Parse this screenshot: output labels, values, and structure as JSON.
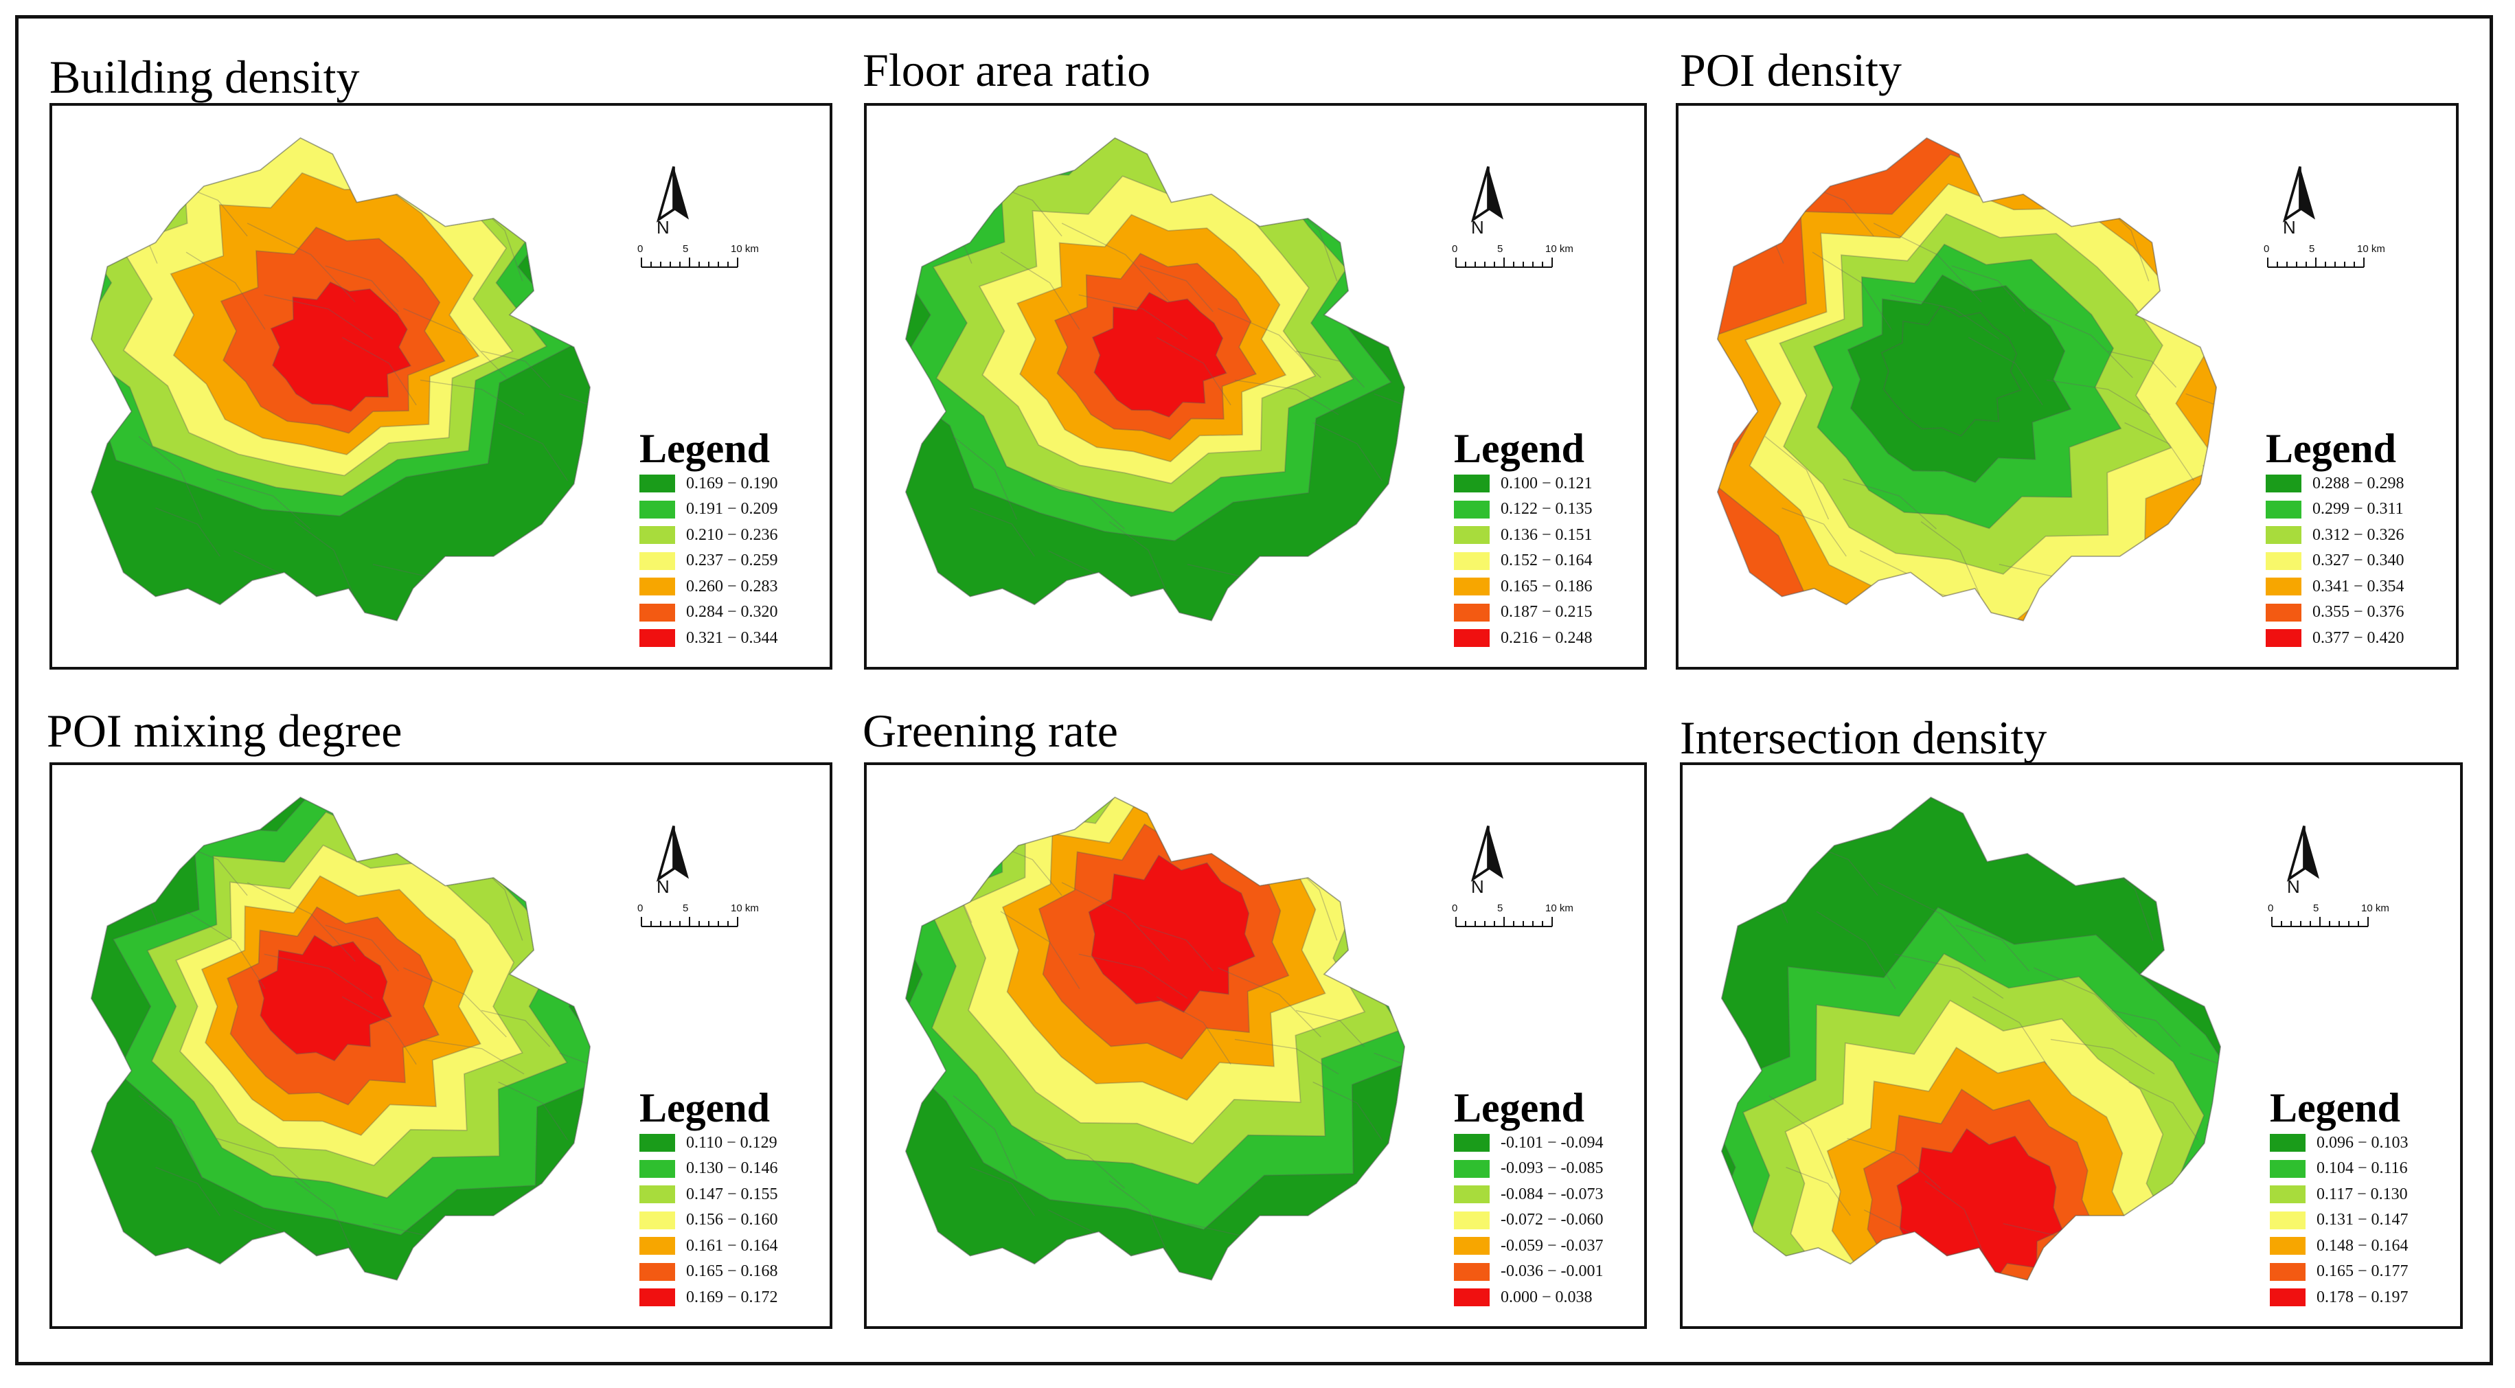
{
  "panels": [
    {
      "title": "Building density",
      "legend_title": "Legend",
      "north_label": "N",
      "scale": [
        "0",
        "5",
        "10 km"
      ],
      "classes": [
        {
          "label": "0.169 − 0.190",
          "color": "#1a9c1a"
        },
        {
          "label": "0.191 − 0.209",
          "color": "#2fbf2f"
        },
        {
          "label": "0.210 − 0.236",
          "color": "#a8dc3c"
        },
        {
          "label": "0.237 − 0.259",
          "color": "#f8f86a"
        },
        {
          "label": "0.260 − 0.283",
          "color": "#f7a600"
        },
        {
          "label": "0.284 − 0.320",
          "color": "#f35a12"
        },
        {
          "label": "0.321 − 0.344",
          "color": "#f01010"
        }
      ],
      "pattern": "center-hot"
    },
    {
      "title": "Floor area ratio",
      "legend_title": "Legend",
      "north_label": "N",
      "scale": [
        "0",
        "5",
        "10 km"
      ],
      "classes": [
        {
          "label": "0.100 − 0.121",
          "color": "#1a9c1a"
        },
        {
          "label": "0.122 − 0.135",
          "color": "#2fbf2f"
        },
        {
          "label": "0.136 − 0.151",
          "color": "#a8dc3c"
        },
        {
          "label": "0.152 − 0.164",
          "color": "#f8f86a"
        },
        {
          "label": "0.165 − 0.186",
          "color": "#f7a600"
        },
        {
          "label": "0.187 − 0.215",
          "color": "#f35a12"
        },
        {
          "label": "0.216 − 0.248",
          "color": "#f01010"
        }
      ],
      "pattern": "center-hot-narrow"
    },
    {
      "title": "POI density",
      "legend_title": "Legend",
      "north_label": "N",
      "scale": [
        "0",
        "5",
        "10 km"
      ],
      "classes": [
        {
          "label": "0.288 − 0.298",
          "color": "#1a9c1a"
        },
        {
          "label": "0.299 − 0.311",
          "color": "#2fbf2f"
        },
        {
          "label": "0.312 − 0.326",
          "color": "#a8dc3c"
        },
        {
          "label": "0.327 − 0.340",
          "color": "#f8f86a"
        },
        {
          "label": "0.341 − 0.354",
          "color": "#f7a600"
        },
        {
          "label": "0.355 − 0.376",
          "color": "#f35a12"
        },
        {
          "label": "0.377 − 0.420",
          "color": "#f01010"
        }
      ],
      "pattern": "edge-hot"
    },
    {
      "title": "POI mixing degree",
      "legend_title": "Legend",
      "north_label": "N",
      "scale": [
        "0",
        "5",
        "10 km"
      ],
      "classes": [
        {
          "label": "0.110 − 0.129",
          "color": "#1a9c1a"
        },
        {
          "label": "0.130 − 0.146",
          "color": "#2fbf2f"
        },
        {
          "label": "0.147 − 0.155",
          "color": "#a8dc3c"
        },
        {
          "label": "0.156 − 0.160",
          "color": "#f8f86a"
        },
        {
          "label": "0.161 − 0.164",
          "color": "#f7a600"
        },
        {
          "label": "0.165 − 0.168",
          "color": "#f35a12"
        },
        {
          "label": "0.169 − 0.172",
          "color": "#f01010"
        }
      ],
      "pattern": "mix"
    },
    {
      "title": "Greening rate",
      "legend_title": "Legend",
      "north_label": "N",
      "scale": [
        "0",
        "5",
        "10 km"
      ],
      "classes": [
        {
          "label": "-0.101 − -0.094",
          "color": "#1a9c1a"
        },
        {
          "label": "-0.093 − -0.085",
          "color": "#2fbf2f"
        },
        {
          "label": "-0.084 − -0.073",
          "color": "#a8dc3c"
        },
        {
          "label": "-0.072 − -0.060",
          "color": "#f8f86a"
        },
        {
          "label": "-0.059 − -0.037",
          "color": "#f7a600"
        },
        {
          "label": "-0.036 − -0.001",
          "color": "#f35a12"
        },
        {
          "label": "0.000 − 0.038",
          "color": "#f01010"
        }
      ],
      "pattern": "north-hot"
    },
    {
      "title": "Intersection density",
      "legend_title": "Legend",
      "north_label": "N",
      "scale": [
        "0",
        "5",
        "10 km"
      ],
      "classes": [
        {
          "label": "0.096 − 0.103",
          "color": "#1a9c1a"
        },
        {
          "label": "0.104 − 0.116",
          "color": "#2fbf2f"
        },
        {
          "label": "0.117 − 0.130",
          "color": "#a8dc3c"
        },
        {
          "label": "0.131 − 0.147",
          "color": "#f8f86a"
        },
        {
          "label": "0.148 − 0.164",
          "color": "#f7a600"
        },
        {
          "label": "0.165 − 0.177",
          "color": "#f35a12"
        },
        {
          "label": "0.178 − 0.197",
          "color": "#f01010"
        }
      ],
      "pattern": "south-hot"
    }
  ]
}
